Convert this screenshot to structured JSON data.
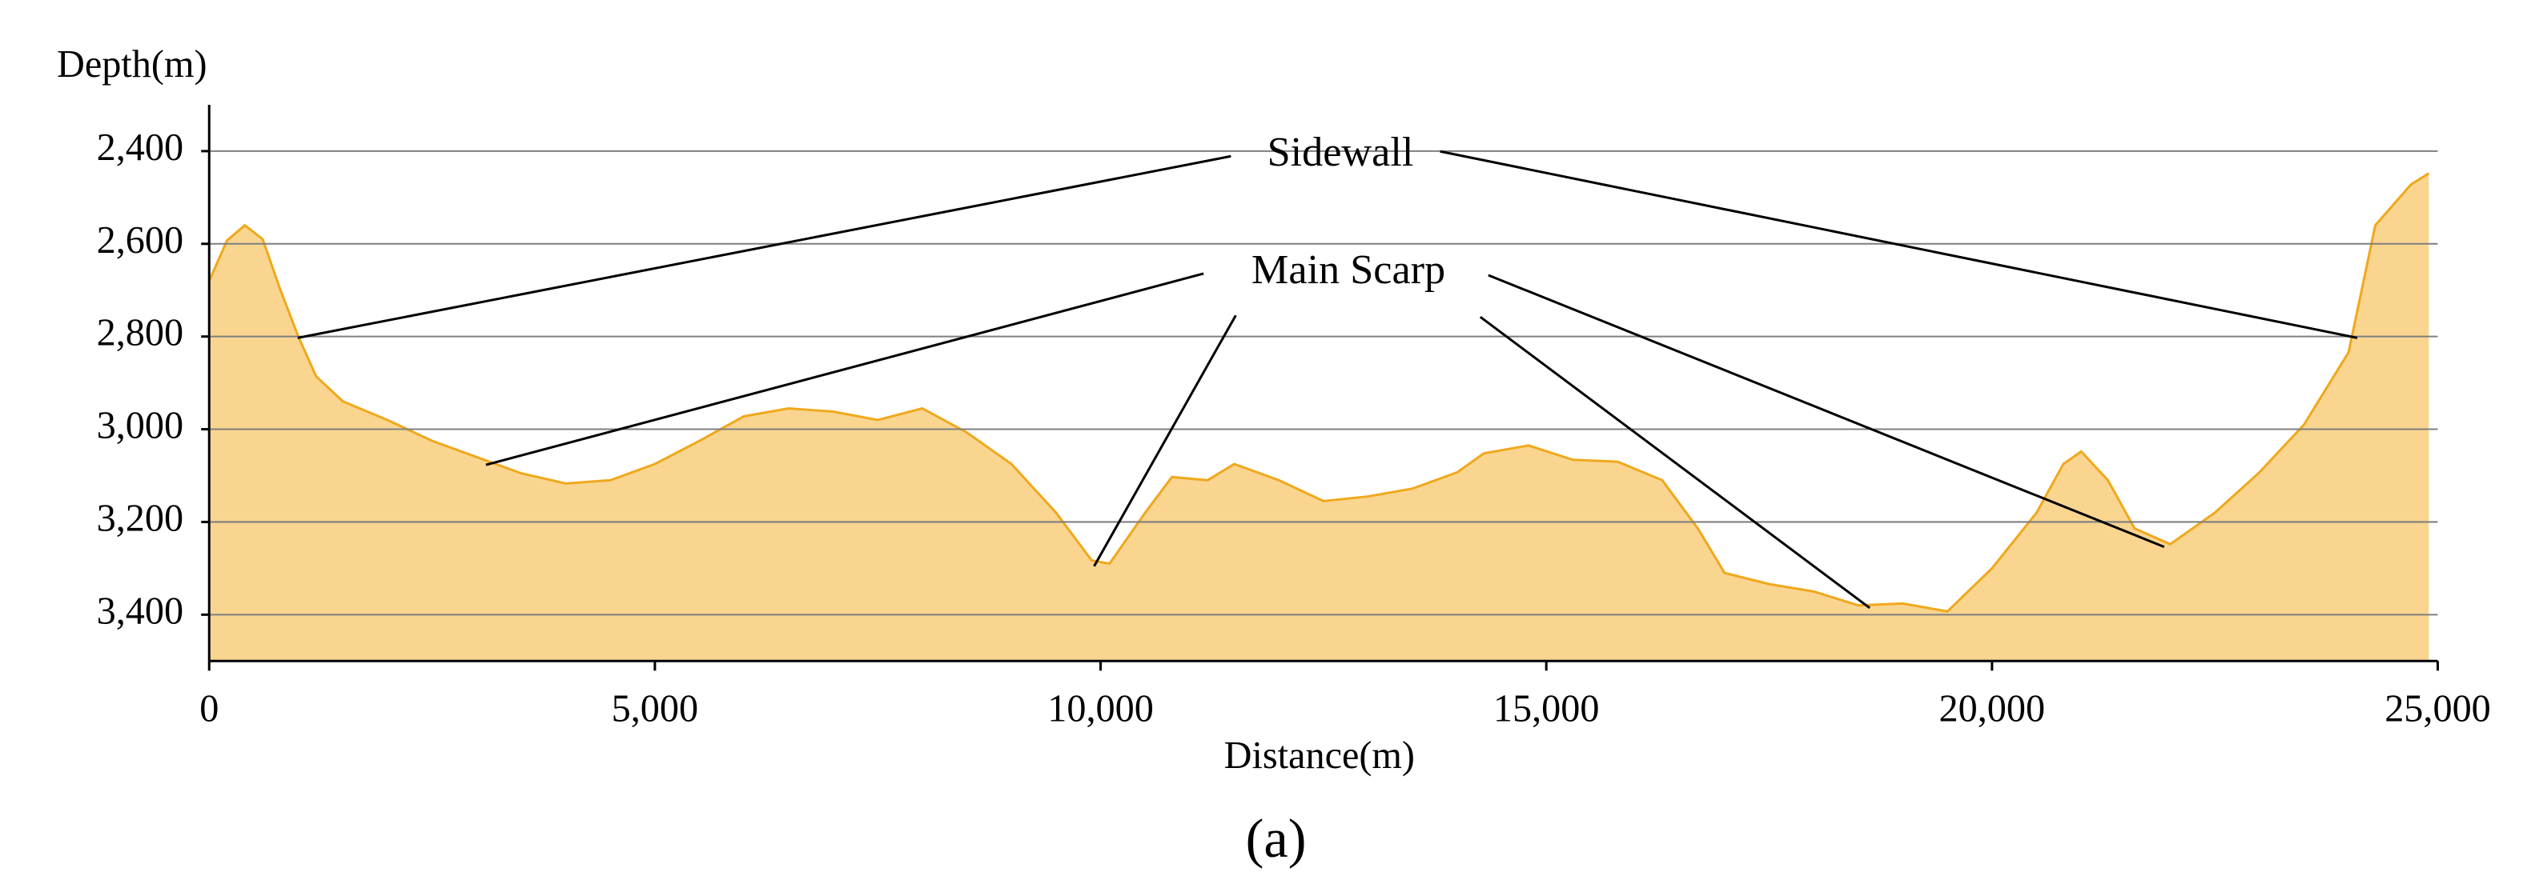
{
  "chart_data": {
    "type": "area",
    "y_label": "Depth(m)",
    "x_label": "Distance(m)",
    "caption": "(a)",
    "annotations": [
      "Sidewall",
      "Main Scarp"
    ],
    "fill_color": "#f9d590",
    "line_color": "#f0a81c",
    "grid": true,
    "invert_y": true,
    "xlim": [
      0,
      25000
    ],
    "ylim": [
      2300,
      3500
    ],
    "xticks": [
      0,
      {
        "value": 5000,
        "label": "5,000"
      },
      {
        "value": 10000,
        "label": "10,000"
      },
      {
        "value": 15000,
        "label": "15,000"
      },
      {
        "value": 20000,
        "label": "20,000"
      },
      {
        "value": 25000,
        "label": "25,000"
      }
    ],
    "yticks": [
      {
        "value": 2400,
        "label": "2,400"
      },
      {
        "value": 2600,
        "label": "2,600"
      },
      {
        "value": 2800,
        "label": "2,800"
      },
      {
        "value": 3000,
        "label": "3,000"
      },
      {
        "value": 3200,
        "label": "3,200"
      },
      {
        "value": 3400,
        "label": "3,400"
      }
    ],
    "x": [
      0,
      200,
      400,
      600,
      800,
      1000,
      1200,
      1500,
      2000,
      2500,
      3000,
      3500,
      4000,
      4500,
      5000,
      5500,
      6000,
      6500,
      7000,
      7500,
      8000,
      8500,
      9000,
      9500,
      9900,
      10100,
      10500,
      10800,
      11200,
      11500,
      12000,
      12500,
      13000,
      13500,
      14000,
      14300,
      14800,
      15300,
      15800,
      16300,
      16700,
      17000,
      17500,
      18000,
      18500,
      19000,
      19500,
      20000,
      20500,
      20800,
      21000,
      21300,
      21600,
      22000,
      22500,
      23000,
      23500,
      24000,
      24300,
      24700,
      24900
    ],
    "values": [
      2680,
      2593,
      2560,
      2590,
      2700,
      2800,
      2886,
      2940,
      2980,
      3025,
      3060,
      3095,
      3117,
      3110,
      3075,
      3025,
      2972,
      2955,
      2962,
      2980,
      2955,
      3007,
      3075,
      3180,
      3283,
      3290,
      3180,
      3103,
      3110,
      3075,
      3110,
      3155,
      3145,
      3128,
      3093,
      3052,
      3035,
      3066,
      3070,
      3110,
      3214,
      3310,
      3334,
      3350,
      3380,
      3376,
      3393,
      3300,
      3180,
      3075,
      3048,
      3110,
      3214,
      3248,
      3180,
      3093,
      2990,
      2834,
      2560,
      2472,
      2448
    ]
  }
}
